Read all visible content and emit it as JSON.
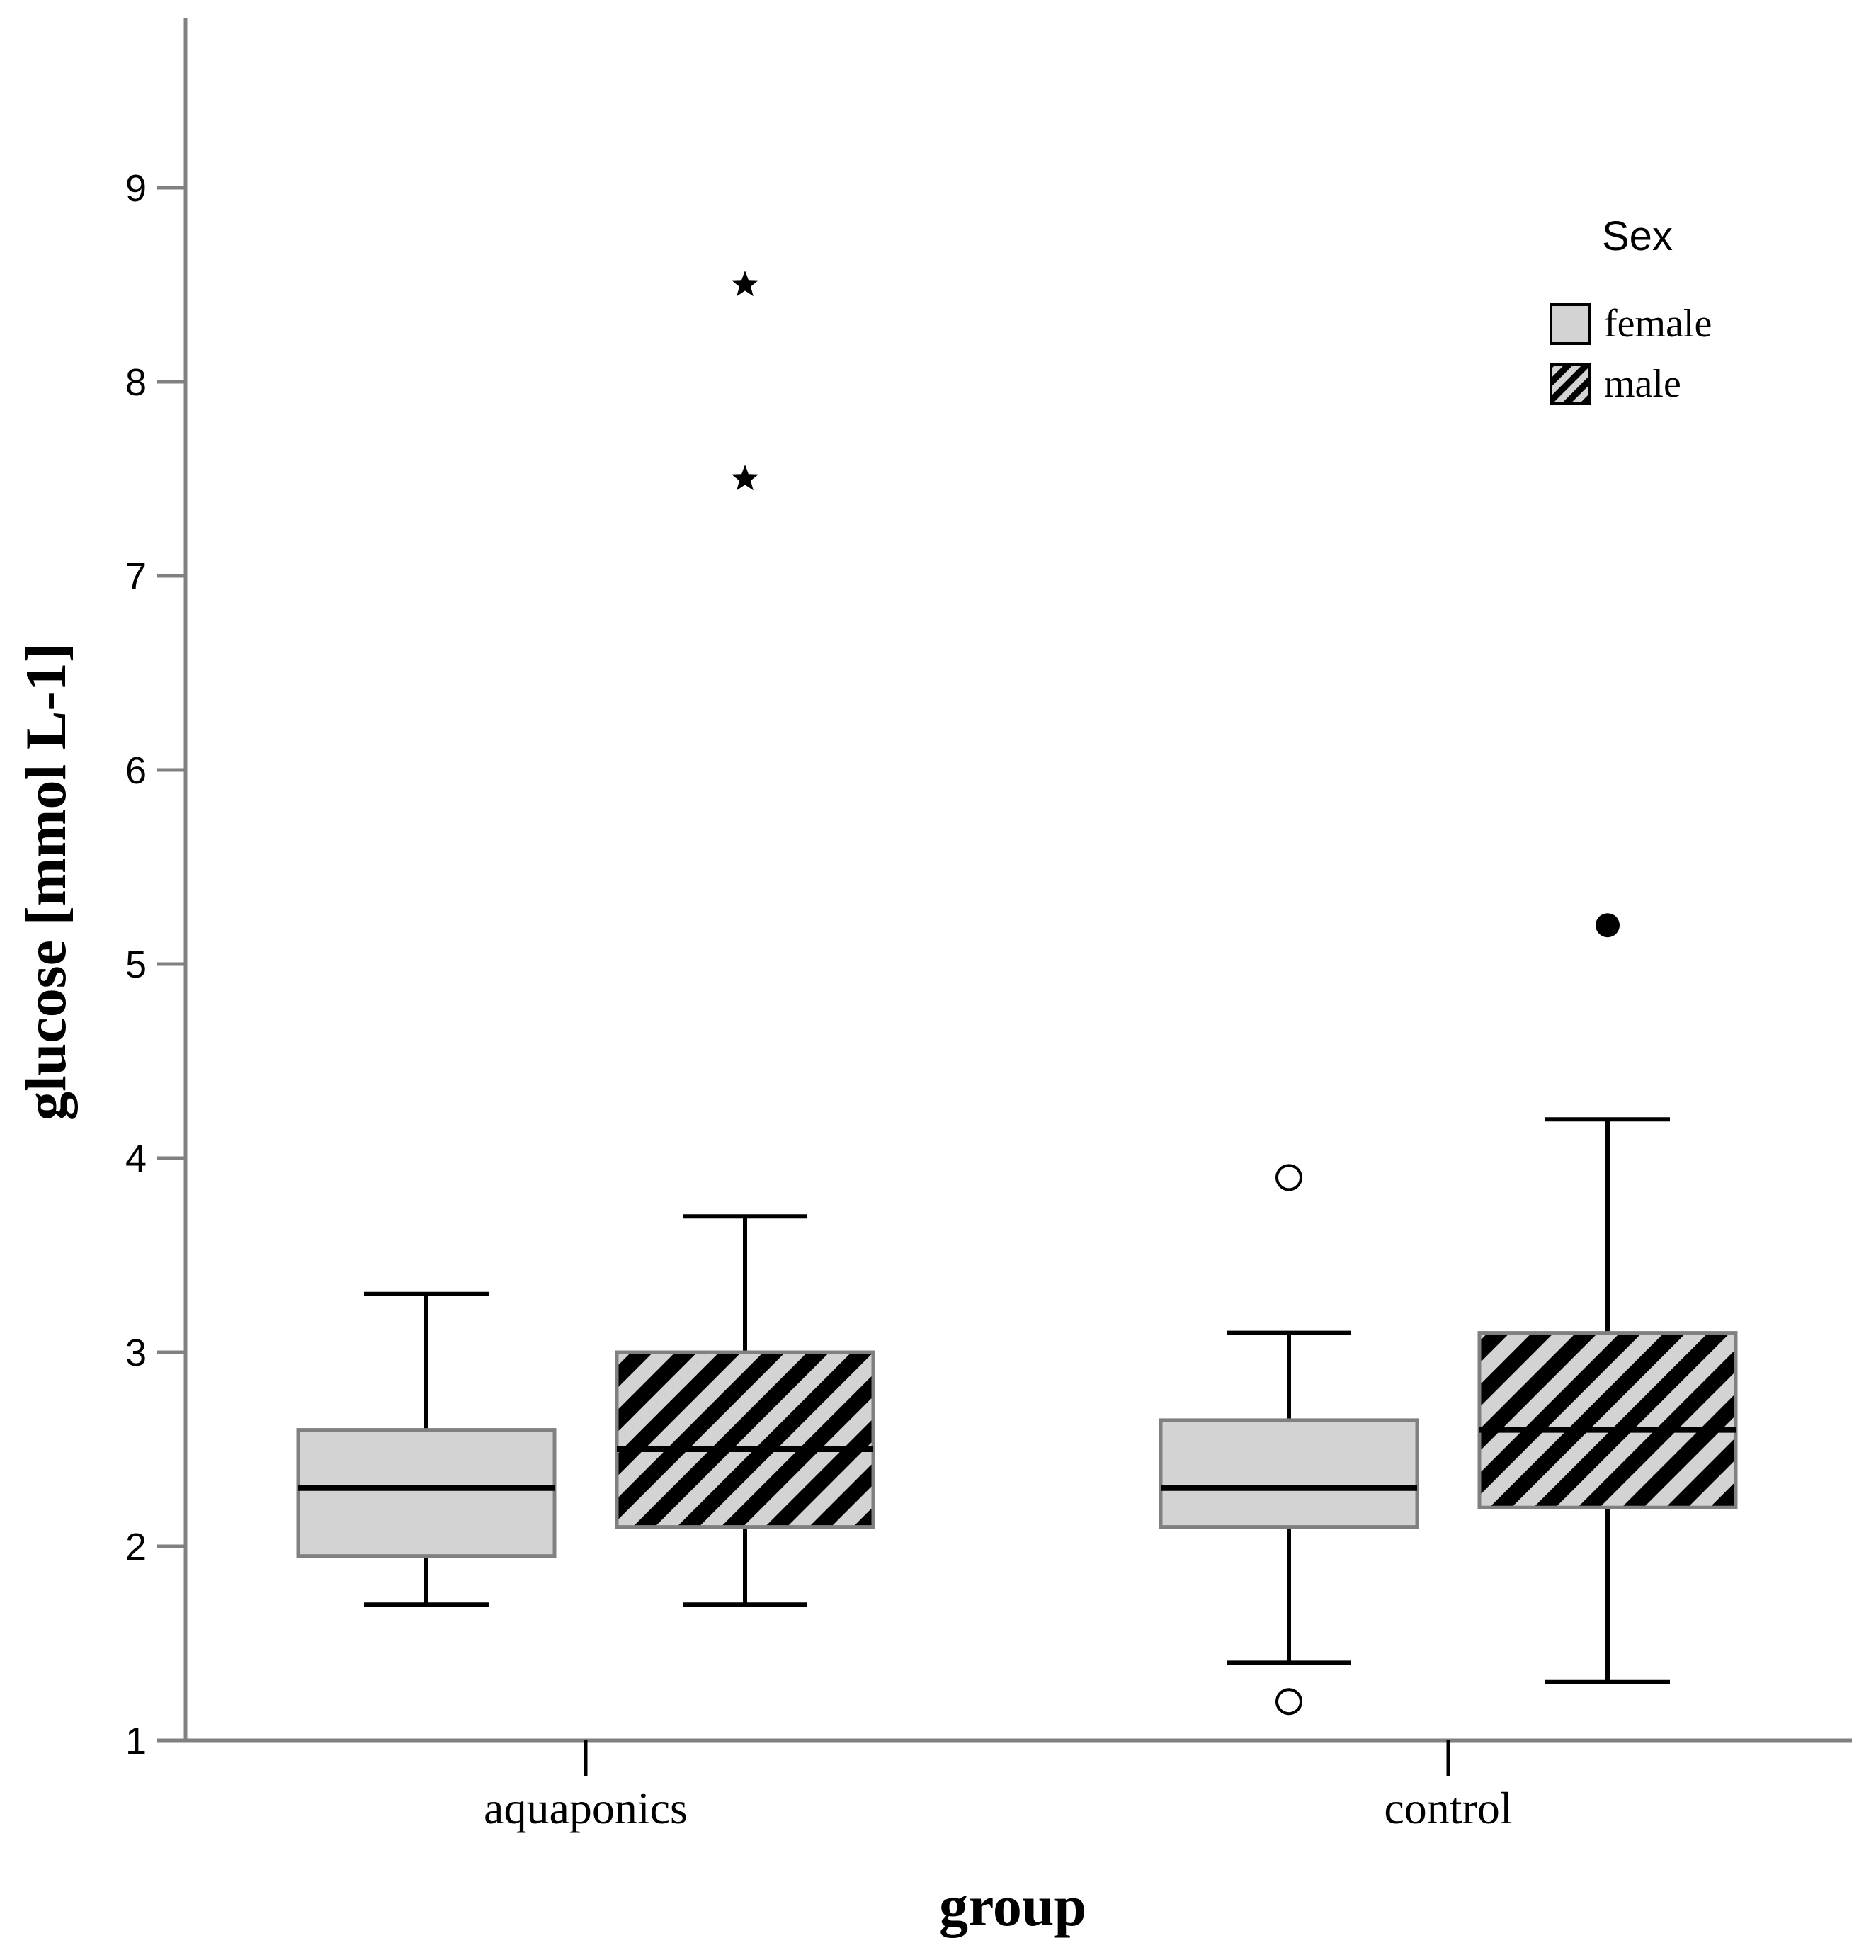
{
  "chart_data": {
    "type": "boxplot",
    "xlabel": "group",
    "ylabel": "glucose [mmol L-1]",
    "ylim": [
      1,
      9.9
    ],
    "yticks": [
      1,
      2,
      3,
      4,
      5,
      6,
      7,
      8,
      9
    ],
    "ytick_labels": [
      "1",
      "2",
      "3",
      "4",
      "5",
      "6",
      "7",
      "8",
      "9"
    ],
    "categories": [
      "aquaponics",
      "control"
    ],
    "legend": {
      "title": "Sex",
      "placement": "top-right",
      "entries": [
        {
          "label": "female",
          "fill": "#d3d3d3",
          "hatched": false
        },
        {
          "label": "male",
          "fill": "#d3d3d3",
          "hatched": true
        }
      ]
    },
    "series": [
      {
        "name": "female",
        "hatched": false,
        "boxes": [
          {
            "category": "aquaponics",
            "whisker_low": 1.7,
            "q1": 1.95,
            "median": 2.3,
            "q3": 2.6,
            "whisker_high": 3.3,
            "outliers": [],
            "extremes": []
          },
          {
            "category": "control",
            "whisker_low": 1.4,
            "q1": 2.1,
            "median": 2.3,
            "q3": 2.65,
            "whisker_high": 3.1,
            "outliers": [
              3.9,
              1.2
            ],
            "extremes": []
          }
        ]
      },
      {
        "name": "male",
        "hatched": true,
        "boxes": [
          {
            "category": "aquaponics",
            "whisker_low": 1.7,
            "q1": 2.1,
            "median": 2.5,
            "q3": 3.0,
            "whisker_high": 3.7,
            "outliers": [],
            "extremes": [
              8.5,
              7.5
            ]
          },
          {
            "category": "control",
            "whisker_low": 1.3,
            "q1": 2.2,
            "median": 2.6,
            "q3": 3.1,
            "whisker_high": 4.2,
            "outliers": [
              5.2
            ],
            "extremes": []
          }
        ]
      }
    ],
    "marker_styles": {
      "female_outlier": "open-circle",
      "male_outlier": "filled-circle",
      "extreme": "star"
    }
  },
  "colors": {
    "box_fill": "#d3d3d3",
    "box_edge": "#808080",
    "line": "#000000",
    "hatch": "#000000"
  }
}
